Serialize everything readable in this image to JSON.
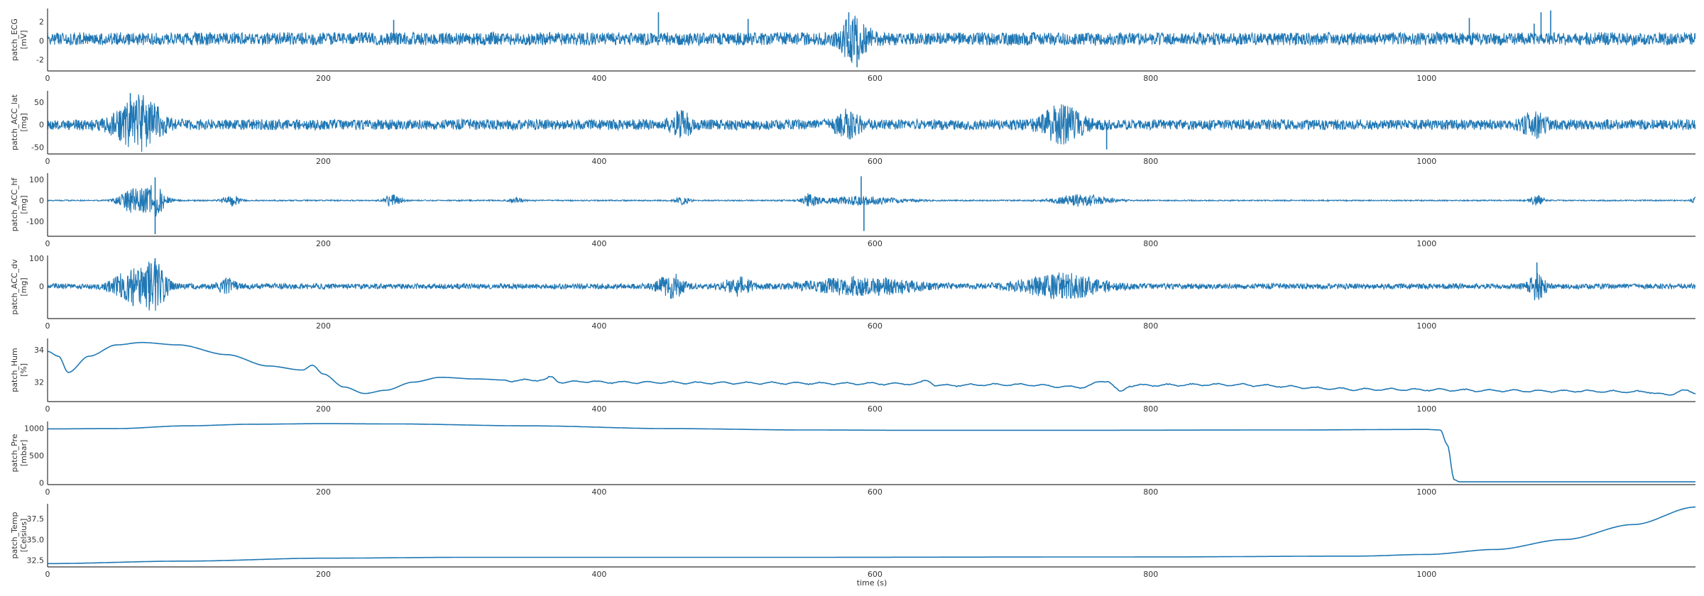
{
  "chart_data": {
    "type": "line",
    "layout": "stacked-subplots",
    "shared_xlim": [
      0,
      1195
    ],
    "xlabel": "time (s)",
    "x_ticks": [
      0,
      200,
      400,
      600,
      800,
      1000
    ],
    "grid": false,
    "legend": "none",
    "series_color": "#1f77b4",
    "panels": [
      {
        "id": "ecg",
        "ylabel_line1": "patch_ECG",
        "ylabel_line2": "[mV]",
        "ylim": [
          -3.2,
          3.4
        ],
        "y_ticks": [
          -2,
          0,
          2
        ],
        "signal": "noise",
        "base": 0.2,
        "amplitude": 0.7,
        "bursts": [
          {
            "center": 585,
            "width": 10,
            "amplitude": 2.0
          }
        ],
        "spikes": [
          {
            "t": 251,
            "v": 2.2
          },
          {
            "t": 443,
            "v": 3.0
          },
          {
            "t": 508,
            "v": 2.3
          },
          {
            "t": 581,
            "v": 3.0
          },
          {
            "t": 587,
            "v": -2.8
          },
          {
            "t": 1031,
            "v": 2.4
          },
          {
            "t": 1078,
            "v": 1.8
          },
          {
            "t": 1083,
            "v": 3.0
          },
          {
            "t": 1090,
            "v": 3.2
          }
        ]
      },
      {
        "id": "acc-lat",
        "ylabel_line1": "patch_ACC_lat",
        "ylabel_line2": "[mg]",
        "ylim": [
          -65,
          75
        ],
        "y_ticks": [
          -50,
          0,
          50
        ],
        "signal": "noise",
        "base": 0,
        "amplitude": 12,
        "bursts": [
          {
            "center": 62,
            "width": 14,
            "amplitude": 45
          },
          {
            "center": 75,
            "width": 10,
            "amplitude": 30
          },
          {
            "center": 460,
            "width": 8,
            "amplitude": 25
          },
          {
            "center": 580,
            "width": 10,
            "amplitude": 25
          },
          {
            "center": 735,
            "width": 14,
            "amplitude": 40
          },
          {
            "center": 1078,
            "width": 8,
            "amplitude": 25
          }
        ],
        "spikes": [
          {
            "t": 60,
            "v": 70
          },
          {
            "t": 768,
            "v": -55
          }
        ]
      },
      {
        "id": "acc-hf",
        "ylabel_line1": "patch_ACC_hf",
        "ylabel_line2": "[mg]",
        "ylim": [
          -170,
          130
        ],
        "y_ticks": [
          -100,
          0,
          100
        ],
        "signal": "noise",
        "base": 0,
        "amplitude": 3,
        "bursts": [
          {
            "center": 62,
            "width": 10,
            "amplitude": 60
          },
          {
            "center": 78,
            "width": 8,
            "amplitude": 70
          },
          {
            "center": 133,
            "width": 6,
            "amplitude": 30
          },
          {
            "center": 250,
            "width": 6,
            "amplitude": 30
          },
          {
            "center": 340,
            "width": 5,
            "amplitude": 12
          },
          {
            "center": 460,
            "width": 5,
            "amplitude": 20
          },
          {
            "center": 553,
            "width": 6,
            "amplitude": 30
          },
          {
            "center": 590,
            "width": 30,
            "amplitude": 20
          },
          {
            "center": 750,
            "width": 20,
            "amplitude": 30
          },
          {
            "center": 1080,
            "width": 5,
            "amplitude": 25
          },
          {
            "center": 1195,
            "width": 3,
            "amplitude": 15
          }
        ],
        "spikes": [
          {
            "t": 78,
            "v": 110
          },
          {
            "t": 78,
            "v": -160
          },
          {
            "t": 590,
            "v": 115
          },
          {
            "t": 592,
            "v": -145
          }
        ]
      },
      {
        "id": "acc-dv",
        "ylabel_line1": "patch_ACC_dv",
        "ylabel_line2": "[mg]",
        "ylim": [
          -115,
          110
        ],
        "y_ticks": [
          0,
          100
        ],
        "signal": "noise",
        "base": 0,
        "amplitude": 10,
        "bursts": [
          {
            "center": 62,
            "width": 14,
            "amplitude": 60
          },
          {
            "center": 78,
            "width": 8,
            "amplitude": 80
          },
          {
            "center": 130,
            "width": 6,
            "amplitude": 25
          },
          {
            "center": 452,
            "width": 10,
            "amplitude": 40
          },
          {
            "center": 500,
            "width": 10,
            "amplitude": 30
          },
          {
            "center": 590,
            "width": 40,
            "amplitude": 28
          },
          {
            "center": 735,
            "width": 30,
            "amplitude": 40
          },
          {
            "center": 1080,
            "width": 6,
            "amplitude": 45
          }
        ],
        "spikes": [
          {
            "t": 78,
            "v": 100
          },
          {
            "t": 62,
            "v": -70
          },
          {
            "t": 1080,
            "v": 85
          }
        ]
      },
      {
        "id": "hum",
        "ylabel_line1": "patch_Hum",
        "ylabel_line2": "[%]",
        "ylim": [
          30.8,
          34.7
        ],
        "y_ticks": [
          32,
          34
        ],
        "signal": "curve",
        "points": [
          [
            0,
            33.9
          ],
          [
            8,
            33.6
          ],
          [
            15,
            32.6
          ],
          [
            30,
            33.6
          ],
          [
            50,
            34.3
          ],
          [
            68,
            34.45
          ],
          [
            95,
            34.3
          ],
          [
            130,
            33.7
          ],
          [
            160,
            33.0
          ],
          [
            185,
            32.75
          ],
          [
            192,
            33.05
          ],
          [
            200,
            32.5
          ],
          [
            215,
            31.7
          ],
          [
            230,
            31.3
          ],
          [
            245,
            31.5
          ],
          [
            265,
            32.0
          ],
          [
            285,
            32.3
          ],
          [
            310,
            32.2
          ],
          [
            340,
            32.1
          ],
          [
            360,
            32.15
          ],
          [
            365,
            32.3
          ],
          [
            372,
            32.0
          ],
          [
            395,
            32.05
          ],
          [
            400,
            32.0
          ],
          [
            500,
            31.95
          ],
          [
            630,
            31.9
          ],
          [
            638,
            32.1
          ],
          [
            645,
            31.8
          ],
          [
            700,
            31.85
          ],
          [
            750,
            31.7
          ],
          [
            768,
            32.1
          ],
          [
            778,
            31.4
          ],
          [
            785,
            31.8
          ],
          [
            850,
            31.85
          ],
          [
            960,
            31.55
          ],
          [
            1100,
            31.45
          ],
          [
            1160,
            31.4
          ],
          [
            1175,
            31.2
          ],
          [
            1185,
            31.5
          ],
          [
            1195,
            31.3
          ]
        ]
      },
      {
        "id": "pre",
        "ylabel_line1": "patch_Pre",
        "ylabel_line2": "[mbar]",
        "ylim": [
          -30,
          1120
        ],
        "y_ticks": [
          0,
          500,
          1000
        ],
        "signal": "curve",
        "points": [
          [
            0,
            985
          ],
          [
            50,
            990
          ],
          [
            100,
            1040
          ],
          [
            150,
            1070
          ],
          [
            200,
            1080
          ],
          [
            250,
            1075
          ],
          [
            350,
            1040
          ],
          [
            450,
            990
          ],
          [
            550,
            965
          ],
          [
            620,
            960
          ],
          [
            750,
            960
          ],
          [
            900,
            965
          ],
          [
            1000,
            975
          ],
          [
            1010,
            965
          ],
          [
            1015,
            700
          ],
          [
            1020,
            60
          ],
          [
            1024,
            20
          ],
          [
            1100,
            20
          ],
          [
            1195,
            20
          ]
        ]
      },
      {
        "id": "temp",
        "ylabel_line1": "patch_Temp",
        "ylabel_line2": "[Celsius]",
        "ylim": [
          31.7,
          39.3
        ],
        "y_ticks": [
          32.5,
          35.0,
          37.5
        ],
        "signal": "curve",
        "points": [
          [
            0,
            32.1
          ],
          [
            100,
            32.4
          ],
          [
            200,
            32.75
          ],
          [
            300,
            32.85
          ],
          [
            500,
            32.85
          ],
          [
            800,
            32.9
          ],
          [
            950,
            33.0
          ],
          [
            1000,
            33.2
          ],
          [
            1050,
            33.8
          ],
          [
            1100,
            35.0
          ],
          [
            1150,
            36.8
          ],
          [
            1195,
            38.9
          ]
        ]
      }
    ]
  }
}
